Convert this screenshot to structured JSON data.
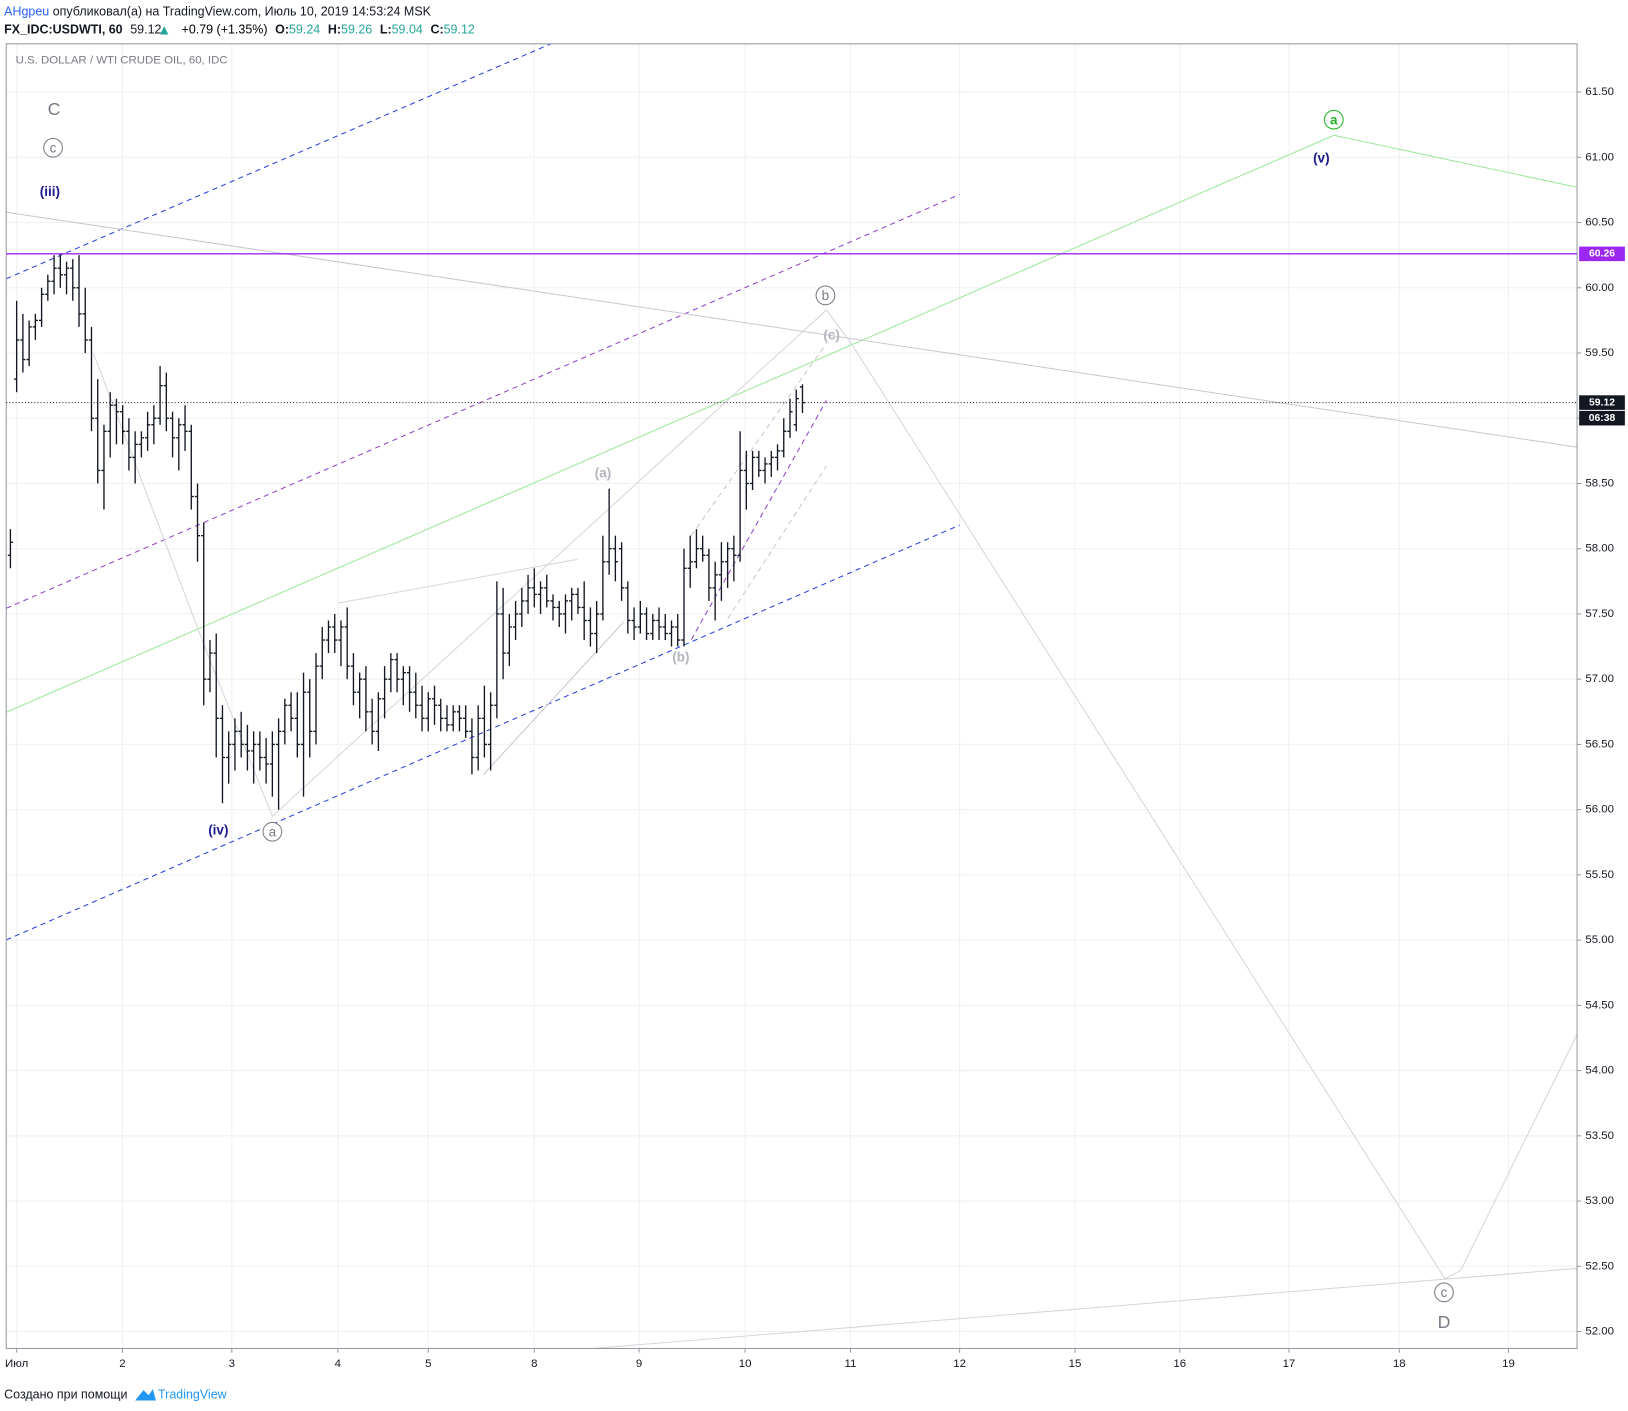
{
  "header": {
    "author": "AHgpeu",
    "published": "опубликовал(а) на TradingView.com, Июль 10, 2019 14:53:24 MSK",
    "symbol": "FX_IDC:USDWTI, 60",
    "change": "+0.79 (+1.35%)",
    "ohlc_labels": [
      "O:",
      "H:",
      "L:",
      "C:"
    ]
  },
  "footer": {
    "text": "Создано при помощи",
    "brand": "TradingView"
  },
  "chart_data": {
    "type": "ohlc",
    "title": "U.S. DOLLAR / WTI CRUDE OIL, 60, IDC",
    "x": [
      0,
      1,
      2,
      3,
      4,
      5,
      6,
      7,
      8,
      9,
      10,
      11,
      12,
      13,
      14,
      15,
      16,
      17,
      18,
      19,
      20,
      21,
      22,
      23,
      24,
      25,
      26,
      27,
      28,
      29,
      30,
      31,
      32,
      33,
      34,
      35,
      36,
      37,
      38,
      39,
      40,
      41,
      42,
      43,
      44,
      45,
      46,
      47,
      48,
      49,
      50,
      51,
      52,
      53,
      54,
      55,
      56,
      57,
      58,
      59,
      60,
      61,
      62,
      63,
      64,
      65,
      66,
      67,
      68,
      69,
      70,
      71,
      72,
      73,
      74,
      75,
      76,
      77,
      78,
      79,
      80,
      81,
      82,
      83,
      84,
      85,
      86,
      87,
      88,
      89,
      90,
      91,
      92,
      93,
      94,
      95,
      96,
      97,
      98,
      99,
      100,
      101,
      102,
      103,
      104,
      105,
      106,
      107,
      108,
      109,
      110,
      111,
      112,
      113,
      114,
      115,
      116,
      117,
      118,
      119,
      120,
      121,
      122,
      123,
      124,
      125,
      126,
      127
    ],
    "ohlc": [
      [
        57.95,
        58.15,
        57.85,
        58.05
      ],
      [
        59.3,
        59.9,
        59.2,
        59.6
      ],
      [
        59.6,
        59.8,
        59.35,
        59.45
      ],
      [
        59.45,
        59.75,
        59.4,
        59.7
      ],
      [
        59.7,
        59.8,
        59.6,
        59.75
      ],
      [
        59.75,
        60.0,
        59.7,
        59.95
      ],
      [
        59.95,
        60.1,
        59.9,
        60.05
      ],
      [
        60.05,
        60.25,
        59.95,
        60.15
      ],
      [
        60.15,
        60.26,
        60.0,
        60.1
      ],
      [
        60.1,
        60.2,
        59.95,
        60.15
      ],
      [
        60.15,
        60.22,
        59.9,
        60.0
      ],
      [
        60.0,
        60.25,
        59.7,
        59.8
      ],
      [
        59.8,
        60.0,
        59.5,
        59.6
      ],
      [
        59.6,
        59.7,
        58.9,
        59.0
      ],
      [
        59.0,
        59.3,
        58.5,
        58.6
      ],
      [
        58.6,
        58.95,
        58.3,
        58.9
      ],
      [
        58.9,
        59.2,
        58.7,
        59.1
      ],
      [
        59.1,
        59.15,
        58.8,
        59.05
      ],
      [
        59.05,
        59.1,
        58.8,
        58.9
      ],
      [
        58.9,
        59.0,
        58.6,
        58.7
      ],
      [
        58.7,
        58.9,
        58.5,
        58.8
      ],
      [
        58.8,
        58.9,
        58.7,
        58.85
      ],
      [
        58.85,
        59.05,
        58.75,
        58.95
      ],
      [
        58.95,
        59.1,
        58.8,
        59.0
      ],
      [
        59.0,
        59.4,
        58.95,
        59.25
      ],
      [
        59.25,
        59.35,
        58.9,
        59.0
      ],
      [
        59.0,
        59.05,
        58.7,
        58.85
      ],
      [
        58.85,
        59.0,
        58.6,
        58.95
      ],
      [
        58.95,
        59.1,
        58.75,
        58.9
      ],
      [
        58.9,
        58.95,
        58.3,
        58.4
      ],
      [
        58.4,
        58.5,
        57.9,
        58.1
      ],
      [
        58.1,
        58.2,
        56.8,
        57.0
      ],
      [
        57.0,
        57.3,
        56.9,
        57.2
      ],
      [
        57.2,
        57.35,
        56.4,
        56.7
      ],
      [
        56.7,
        56.8,
        56.05,
        56.4
      ],
      [
        56.4,
        56.6,
        56.2,
        56.5
      ],
      [
        56.5,
        56.7,
        56.3,
        56.6
      ],
      [
        56.6,
        56.75,
        56.4,
        56.5
      ],
      [
        56.5,
        56.65,
        56.3,
        56.45
      ],
      [
        56.45,
        56.6,
        56.2,
        56.5
      ],
      [
        56.5,
        56.6,
        56.3,
        56.4
      ],
      [
        56.4,
        56.55,
        56.2,
        56.35
      ],
      [
        56.35,
        56.6,
        56.1,
        56.5
      ],
      [
        56.5,
        56.7,
        56.0,
        56.6
      ],
      [
        56.6,
        56.85,
        56.5,
        56.8
      ],
      [
        56.8,
        56.9,
        56.6,
        56.7
      ],
      [
        56.7,
        56.9,
        56.4,
        56.5
      ],
      [
        56.5,
        57.05,
        56.1,
        56.9
      ],
      [
        56.9,
        57.0,
        56.4,
        56.6
      ],
      [
        56.6,
        57.2,
        56.5,
        57.1
      ],
      [
        57.1,
        57.4,
        57.0,
        57.3
      ],
      [
        57.3,
        57.45,
        57.2,
        57.4
      ],
      [
        57.4,
        57.5,
        57.2,
        57.3
      ],
      [
        57.3,
        57.45,
        57.1,
        57.4
      ],
      [
        57.4,
        57.55,
        57.0,
        57.1
      ],
      [
        57.1,
        57.2,
        56.8,
        56.9
      ],
      [
        56.9,
        57.05,
        56.7,
        57.0
      ],
      [
        57.0,
        57.1,
        56.6,
        56.75
      ],
      [
        56.75,
        56.85,
        56.5,
        56.6
      ],
      [
        56.6,
        56.9,
        56.45,
        56.85
      ],
      [
        56.85,
        57.1,
        56.7,
        57.0
      ],
      [
        57.0,
        57.2,
        56.9,
        57.15
      ],
      [
        57.15,
        57.2,
        56.9,
        57.0
      ],
      [
        57.0,
        57.1,
        56.8,
        57.05
      ],
      [
        57.05,
        57.1,
        56.75,
        56.9
      ],
      [
        56.9,
        57.05,
        56.7,
        56.8
      ],
      [
        56.8,
        56.95,
        56.6,
        56.7
      ],
      [
        56.7,
        56.9,
        56.6,
        56.85
      ],
      [
        56.85,
        56.95,
        56.65,
        56.8
      ],
      [
        56.8,
        56.85,
        56.6,
        56.7
      ],
      [
        56.7,
        56.8,
        56.6,
        56.65
      ],
      [
        56.65,
        56.8,
        56.6,
        56.75
      ],
      [
        56.75,
        56.8,
        56.6,
        56.7
      ],
      [
        56.7,
        56.8,
        56.55,
        56.6
      ],
      [
        56.6,
        56.7,
        56.27,
        56.4
      ],
      [
        56.4,
        56.8,
        56.3,
        56.7
      ],
      [
        56.7,
        56.95,
        56.4,
        56.5
      ],
      [
        56.5,
        56.9,
        56.3,
        56.8
      ],
      [
        56.8,
        57.75,
        56.7,
        57.5
      ],
      [
        57.5,
        57.7,
        57.0,
        57.2
      ],
      [
        57.2,
        57.5,
        57.1,
        57.4
      ],
      [
        57.4,
        57.6,
        57.3,
        57.5
      ],
      [
        57.5,
        57.7,
        57.4,
        57.6
      ],
      [
        57.6,
        57.8,
        57.5,
        57.7
      ],
      [
        57.7,
        57.85,
        57.55,
        57.65
      ],
      [
        57.65,
        57.75,
        57.5,
        57.7
      ],
      [
        57.7,
        57.8,
        57.55,
        57.6
      ],
      [
        57.6,
        57.65,
        57.45,
        57.55
      ],
      [
        57.55,
        57.6,
        57.4,
        57.5
      ],
      [
        57.5,
        57.65,
        57.35,
        57.6
      ],
      [
        57.6,
        57.7,
        57.45,
        57.65
      ],
      [
        57.65,
        57.7,
        57.5,
        57.55
      ],
      [
        57.55,
        57.75,
        57.3,
        57.45
      ],
      [
        57.45,
        57.55,
        57.25,
        57.35
      ],
      [
        57.35,
        57.6,
        57.2,
        57.5
      ],
      [
        57.5,
        58.1,
        57.45,
        57.9
      ],
      [
        57.9,
        58.46,
        57.8,
        58.0
      ],
      [
        58.0,
        58.1,
        57.75,
        57.9
      ],
      [
        58.0,
        58.05,
        57.6,
        57.7
      ],
      [
        57.7,
        57.75,
        57.35,
        57.45
      ],
      [
        57.45,
        57.55,
        57.3,
        57.4
      ],
      [
        57.4,
        57.6,
        57.35,
        57.5
      ],
      [
        57.5,
        57.55,
        57.3,
        57.35
      ],
      [
        57.35,
        57.5,
        57.3,
        57.45
      ],
      [
        57.45,
        57.55,
        57.3,
        57.4
      ],
      [
        57.4,
        57.5,
        57.3,
        57.35
      ],
      [
        57.35,
        57.45,
        57.25,
        57.4
      ],
      [
        57.4,
        57.5,
        57.25,
        57.3
      ],
      [
        57.3,
        58.0,
        57.25,
        57.85
      ],
      [
        57.85,
        58.1,
        57.7,
        57.9
      ],
      [
        57.9,
        58.15,
        57.85,
        58.0
      ],
      [
        58.0,
        58.1,
        57.9,
        57.95
      ],
      [
        57.95,
        58.0,
        57.6,
        57.7
      ],
      [
        57.7,
        57.9,
        57.45,
        57.8
      ],
      [
        57.8,
        58.05,
        57.6,
        57.9
      ],
      [
        57.9,
        58.05,
        57.7,
        58.0
      ],
      [
        58.0,
        58.1,
        57.75,
        57.95
      ],
      [
        57.95,
        58.9,
        57.9,
        58.6
      ],
      [
        58.6,
        58.75,
        58.3,
        58.5
      ],
      [
        58.5,
        58.75,
        58.45,
        58.7
      ],
      [
        58.7,
        58.75,
        58.55,
        58.6
      ],
      [
        58.6,
        58.7,
        58.5,
        58.65
      ],
      [
        58.65,
        58.75,
        58.55,
        58.7
      ],
      [
        58.7,
        58.8,
        58.6,
        58.75
      ],
      [
        58.75,
        59.0,
        58.7,
        58.9
      ],
      [
        58.9,
        59.15,
        58.85,
        59.05
      ],
      [
        58.95,
        59.22,
        58.9,
        59.15
      ],
      [
        59.24,
        59.26,
        59.04,
        59.12
      ]
    ],
    "bar_color": "#131722",
    "xlim": [
      -0.67,
      251.2
    ],
    "xticks": [
      {
        "value": 1.0,
        "label": "Июл"
      },
      {
        "value": 17.97,
        "label": "2"
      },
      {
        "value": 35.5,
        "label": "3"
      },
      {
        "value": 52.5,
        "label": "4"
      },
      {
        "value": 67.0,
        "label": "5"
      },
      {
        "value": 84.0,
        "label": "8"
      },
      {
        "value": 100.8,
        "label": "9"
      },
      {
        "value": 117.8,
        "label": "10"
      },
      {
        "value": 134.7,
        "label": "11"
      },
      {
        "value": 152.2,
        "label": "12"
      },
      {
        "value": 170.7,
        "label": "15"
      },
      {
        "value": 187.5,
        "label": "16"
      },
      {
        "value": 205.0,
        "label": "17"
      },
      {
        "value": 222.7,
        "label": "18"
      },
      {
        "value": 240.2,
        "label": "19"
      }
    ],
    "ylim": [
      51.87,
      61.87
    ],
    "yticks": [
      {
        "value": 52,
        "label": "52.00"
      },
      {
        "value": 52.5,
        "label": "52.50"
      },
      {
        "value": 53,
        "label": "53.00"
      },
      {
        "value": 53.5,
        "label": "53.50"
      },
      {
        "value": 54,
        "label": "54.00"
      },
      {
        "value": 54.5,
        "label": "54.50"
      },
      {
        "value": 55,
        "label": "55.00"
      },
      {
        "value": 55.5,
        "label": "55.50"
      },
      {
        "value": 56,
        "label": "56.00"
      },
      {
        "value": 56.5,
        "label": "56.50"
      },
      {
        "value": 57,
        "label": "57.00"
      },
      {
        "value": 57.5,
        "label": "57.50"
      },
      {
        "value": 58,
        "label": "58.00"
      },
      {
        "value": 58.5,
        "label": "58.50"
      },
      {
        "value": 59,
        "label": "59.00"
      },
      {
        "value": 59.5,
        "label": "59.50"
      },
      {
        "value": 60,
        "label": "60.00"
      },
      {
        "value": 60.5,
        "label": "60.50"
      },
      {
        "value": 61,
        "label": "61.00"
      },
      {
        "value": 61.5,
        "label": "61.50"
      }
    ],
    "grid": true,
    "hline": {
      "value": 60.26,
      "color": "#9c27f0"
    },
    "last_price": 59.12,
    "countdown": "06:38",
    "annotations": [
      "C",
      "c",
      "(iii)",
      "(iv)",
      "a",
      "(a)",
      "(b)",
      "(c)",
      "b",
      "a",
      "(v)",
      "c",
      "D"
    ]
  }
}
